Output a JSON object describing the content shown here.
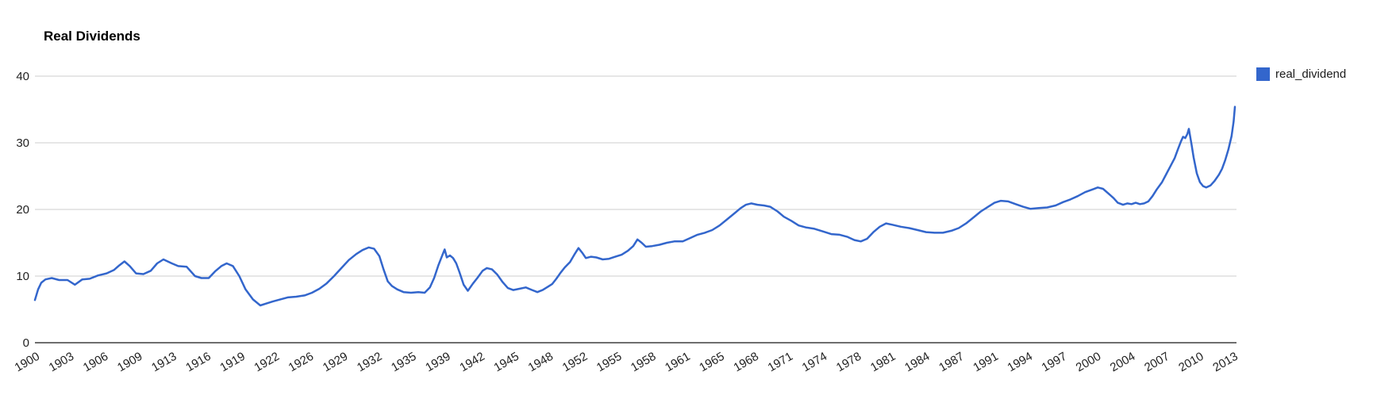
{
  "title": "Real Dividends",
  "legend": {
    "items": [
      {
        "label": "real_dividend",
        "color": "#3366CC"
      }
    ]
  },
  "colors": {
    "line": "#3366CC",
    "gridline": "#CCCCCC",
    "baseline": "#6E6E6E",
    "axis_label": "#222222",
    "background": "#FFFFFF"
  },
  "chart_data": {
    "type": "line",
    "title": "Real Dividends",
    "xlabel": "",
    "ylabel": "",
    "ylim": [
      0,
      40
    ],
    "xlim": [
      1900,
      2014
    ],
    "yticks": [
      0,
      10,
      20,
      30,
      40
    ],
    "x_tick_step_years": 3.25,
    "x_tick_labels": [
      "1900",
      "1903",
      "1906",
      "1909",
      "1913",
      "1916",
      "1919",
      "1922",
      "1926",
      "1929",
      "1932",
      "1935",
      "1939",
      "1942",
      "1945",
      "1948",
      "1952",
      "1955",
      "1958",
      "1961",
      "1965",
      "1968",
      "1971",
      "1974",
      "1978",
      "1981",
      "1984",
      "1987",
      "1991",
      "1994",
      "1997",
      "2000",
      "2004",
      "2007",
      "2010",
      "2013"
    ],
    "x_label_angle": -30,
    "grid": "horizontal",
    "legend": {
      "position": "right",
      "entries": [
        "real_dividend"
      ]
    },
    "series": [
      {
        "name": "real_dividend",
        "color": "#3366CC",
        "points": [
          [
            1900.0,
            6.4
          ],
          [
            1900.3,
            8.0
          ],
          [
            1900.6,
            9.0
          ],
          [
            1901.0,
            9.5
          ],
          [
            1901.6,
            9.7
          ],
          [
            1902.3,
            9.4
          ],
          [
            1903.1,
            9.4
          ],
          [
            1903.8,
            8.7
          ],
          [
            1904.5,
            9.5
          ],
          [
            1905.2,
            9.6
          ],
          [
            1906.0,
            10.1
          ],
          [
            1906.8,
            10.4
          ],
          [
            1907.5,
            10.9
          ],
          [
            1908.0,
            11.6
          ],
          [
            1908.5,
            12.2
          ],
          [
            1909.0,
            11.5
          ],
          [
            1909.6,
            10.4
          ],
          [
            1910.3,
            10.3
          ],
          [
            1911.0,
            10.8
          ],
          [
            1911.6,
            11.9
          ],
          [
            1912.2,
            12.5
          ],
          [
            1912.6,
            12.2
          ],
          [
            1913.0,
            11.9
          ],
          [
            1913.6,
            11.5
          ],
          [
            1914.4,
            11.4
          ],
          [
            1915.2,
            10.0
          ],
          [
            1915.8,
            9.7
          ],
          [
            1916.5,
            9.7
          ],
          [
            1917.1,
            10.7
          ],
          [
            1917.7,
            11.5
          ],
          [
            1918.2,
            11.9
          ],
          [
            1918.8,
            11.5
          ],
          [
            1919.4,
            10.0
          ],
          [
            1920.0,
            8.0
          ],
          [
            1920.7,
            6.5
          ],
          [
            1921.4,
            5.6
          ],
          [
            1922.0,
            5.9
          ],
          [
            1922.6,
            6.2
          ],
          [
            1923.3,
            6.5
          ],
          [
            1924.0,
            6.8
          ],
          [
            1924.8,
            6.9
          ],
          [
            1925.6,
            7.1
          ],
          [
            1926.3,
            7.5
          ],
          [
            1927.0,
            8.1
          ],
          [
            1927.7,
            8.9
          ],
          [
            1928.4,
            10.0
          ],
          [
            1929.1,
            11.2
          ],
          [
            1929.8,
            12.4
          ],
          [
            1930.5,
            13.3
          ],
          [
            1931.1,
            13.9
          ],
          [
            1931.7,
            14.3
          ],
          [
            1932.2,
            14.1
          ],
          [
            1932.7,
            13.0
          ],
          [
            1933.1,
            11.0
          ],
          [
            1933.5,
            9.2
          ],
          [
            1933.9,
            8.5
          ],
          [
            1934.4,
            8.0
          ],
          [
            1935.0,
            7.6
          ],
          [
            1935.7,
            7.5
          ],
          [
            1936.4,
            7.6
          ],
          [
            1937.0,
            7.5
          ],
          [
            1937.5,
            8.3
          ],
          [
            1937.9,
            9.7
          ],
          [
            1938.3,
            11.6
          ],
          [
            1938.7,
            13.2
          ],
          [
            1938.9,
            14.0
          ],
          [
            1939.1,
            12.8
          ],
          [
            1939.4,
            13.1
          ],
          [
            1939.7,
            12.7
          ],
          [
            1940.0,
            11.9
          ],
          [
            1940.3,
            10.6
          ],
          [
            1940.7,
            8.7
          ],
          [
            1941.1,
            7.8
          ],
          [
            1941.6,
            8.9
          ],
          [
            1942.0,
            9.7
          ],
          [
            1942.5,
            10.8
          ],
          [
            1942.9,
            11.2
          ],
          [
            1943.4,
            11.0
          ],
          [
            1943.9,
            10.2
          ],
          [
            1944.4,
            9.1
          ],
          [
            1944.9,
            8.2
          ],
          [
            1945.4,
            7.9
          ],
          [
            1946.0,
            8.1
          ],
          [
            1946.6,
            8.3
          ],
          [
            1947.2,
            7.9
          ],
          [
            1947.7,
            7.6
          ],
          [
            1948.2,
            7.9
          ],
          [
            1948.7,
            8.4
          ],
          [
            1949.1,
            8.8
          ],
          [
            1949.5,
            9.6
          ],
          [
            1949.9,
            10.5
          ],
          [
            1950.3,
            11.3
          ],
          [
            1950.8,
            12.1
          ],
          [
            1951.2,
            13.2
          ],
          [
            1951.6,
            14.2
          ],
          [
            1952.0,
            13.4
          ],
          [
            1952.3,
            12.7
          ],
          [
            1952.8,
            12.9
          ],
          [
            1953.3,
            12.8
          ],
          [
            1953.9,
            12.5
          ],
          [
            1954.5,
            12.6
          ],
          [
            1955.1,
            12.9
          ],
          [
            1955.7,
            13.2
          ],
          [
            1956.3,
            13.8
          ],
          [
            1956.8,
            14.5
          ],
          [
            1957.2,
            15.5
          ],
          [
            1957.6,
            15.0
          ],
          [
            1958.0,
            14.4
          ],
          [
            1958.6,
            14.5
          ],
          [
            1959.3,
            14.7
          ],
          [
            1960.0,
            15.0
          ],
          [
            1960.7,
            15.2
          ],
          [
            1961.5,
            15.2
          ],
          [
            1962.2,
            15.7
          ],
          [
            1962.9,
            16.2
          ],
          [
            1963.6,
            16.5
          ],
          [
            1964.3,
            16.9
          ],
          [
            1965.0,
            17.6
          ],
          [
            1965.7,
            18.5
          ],
          [
            1966.4,
            19.4
          ],
          [
            1967.0,
            20.2
          ],
          [
            1967.5,
            20.7
          ],
          [
            1968.0,
            20.9
          ],
          [
            1968.6,
            20.7
          ],
          [
            1969.2,
            20.6
          ],
          [
            1969.8,
            20.4
          ],
          [
            1970.5,
            19.7
          ],
          [
            1971.1,
            18.9
          ],
          [
            1971.8,
            18.3
          ],
          [
            1972.5,
            17.6
          ],
          [
            1973.2,
            17.3
          ],
          [
            1974.0,
            17.1
          ],
          [
            1974.8,
            16.7
          ],
          [
            1975.6,
            16.3
          ],
          [
            1976.4,
            16.2
          ],
          [
            1977.1,
            15.9
          ],
          [
            1977.8,
            15.4
          ],
          [
            1978.4,
            15.2
          ],
          [
            1979.0,
            15.6
          ],
          [
            1979.6,
            16.6
          ],
          [
            1980.2,
            17.4
          ],
          [
            1980.8,
            17.9
          ],
          [
            1981.4,
            17.7
          ],
          [
            1982.2,
            17.4
          ],
          [
            1983.0,
            17.2
          ],
          [
            1983.8,
            16.9
          ],
          [
            1984.6,
            16.6
          ],
          [
            1985.4,
            16.5
          ],
          [
            1986.2,
            16.5
          ],
          [
            1987.0,
            16.8
          ],
          [
            1987.7,
            17.2
          ],
          [
            1988.4,
            17.9
          ],
          [
            1989.1,
            18.8
          ],
          [
            1989.8,
            19.7
          ],
          [
            1990.5,
            20.4
          ],
          [
            1991.1,
            21.0
          ],
          [
            1991.7,
            21.3
          ],
          [
            1992.4,
            21.2
          ],
          [
            1993.1,
            20.8
          ],
          [
            1993.8,
            20.4
          ],
          [
            1994.5,
            20.1
          ],
          [
            1995.3,
            20.2
          ],
          [
            1996.1,
            20.3
          ],
          [
            1996.9,
            20.6
          ],
          [
            1997.6,
            21.1
          ],
          [
            1998.3,
            21.5
          ],
          [
            1999.0,
            22.0
          ],
          [
            1999.7,
            22.6
          ],
          [
            2000.4,
            23.0
          ],
          [
            2000.9,
            23.3
          ],
          [
            2001.4,
            23.1
          ],
          [
            2001.9,
            22.4
          ],
          [
            2002.4,
            21.7
          ],
          [
            2002.8,
            21.0
          ],
          [
            2003.3,
            20.7
          ],
          [
            2003.7,
            20.9
          ],
          [
            2004.1,
            20.8
          ],
          [
            2004.5,
            21.0
          ],
          [
            2004.9,
            20.8
          ],
          [
            2005.3,
            20.9
          ],
          [
            2005.7,
            21.2
          ],
          [
            2006.1,
            22.0
          ],
          [
            2006.5,
            23.0
          ],
          [
            2007.0,
            24.1
          ],
          [
            2007.4,
            25.3
          ],
          [
            2007.8,
            26.5
          ],
          [
            2008.2,
            27.7
          ],
          [
            2008.5,
            29.0
          ],
          [
            2008.8,
            30.2
          ],
          [
            2009.0,
            30.9
          ],
          [
            2009.2,
            30.7
          ],
          [
            2009.4,
            31.3
          ],
          [
            2009.55,
            32.1
          ],
          [
            2009.8,
            29.8
          ],
          [
            2010.0,
            27.8
          ],
          [
            2010.3,
            25.4
          ],
          [
            2010.6,
            24.1
          ],
          [
            2010.9,
            23.5
          ],
          [
            2011.2,
            23.3
          ],
          [
            2011.6,
            23.6
          ],
          [
            2012.0,
            24.3
          ],
          [
            2012.4,
            25.2
          ],
          [
            2012.7,
            26.1
          ],
          [
            2013.0,
            27.4
          ],
          [
            2013.3,
            29.0
          ],
          [
            2013.6,
            31.0
          ],
          [
            2013.8,
            33.2
          ],
          [
            2013.92,
            35.4
          ]
        ]
      }
    ]
  }
}
